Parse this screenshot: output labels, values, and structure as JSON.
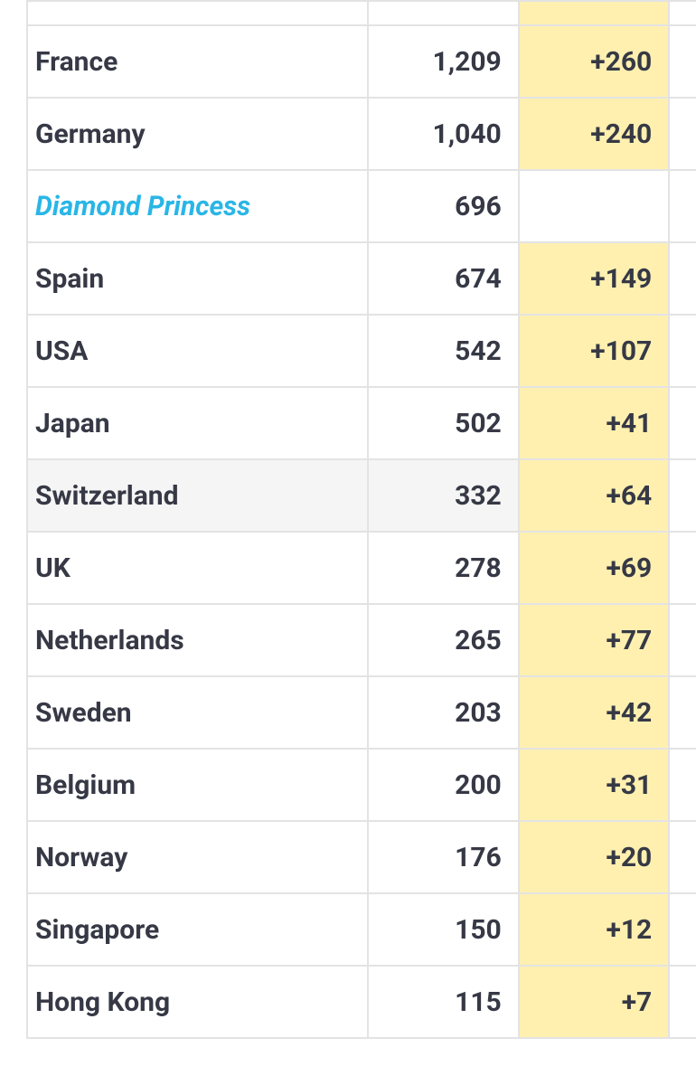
{
  "rows": [
    {
      "country": "France",
      "cases": "1,209",
      "new_cases": "+260"
    },
    {
      "country": "Germany",
      "cases": "1,040",
      "new_cases": "+240"
    },
    {
      "country": "Diamond Princess",
      "cases": "696",
      "new_cases": "",
      "is_link": true
    },
    {
      "country": "Spain",
      "cases": "674",
      "new_cases": "+149"
    },
    {
      "country": "USA",
      "cases": "542",
      "new_cases": "+107"
    },
    {
      "country": "Japan",
      "cases": "502",
      "new_cases": "+41"
    },
    {
      "country": "Switzerland",
      "cases": "332",
      "new_cases": "+64",
      "highlighted": true
    },
    {
      "country": "UK",
      "cases": "278",
      "new_cases": "+69"
    },
    {
      "country": "Netherlands",
      "cases": "265",
      "new_cases": "+77"
    },
    {
      "country": "Sweden",
      "cases": "203",
      "new_cases": "+42"
    },
    {
      "country": "Belgium",
      "cases": "200",
      "new_cases": "+31"
    },
    {
      "country": "Norway",
      "cases": "176",
      "new_cases": "+20"
    },
    {
      "country": "Singapore",
      "cases": "150",
      "new_cases": "+12"
    },
    {
      "country": "Hong Kong",
      "cases": "115",
      "new_cases": "+7"
    }
  ],
  "colors": {
    "text": "#363945",
    "link": "#29b6e6",
    "new_cases_bg": "#fff0b0",
    "row_highlight_bg": "#f5f5f5",
    "border": "#e3e3e3"
  }
}
